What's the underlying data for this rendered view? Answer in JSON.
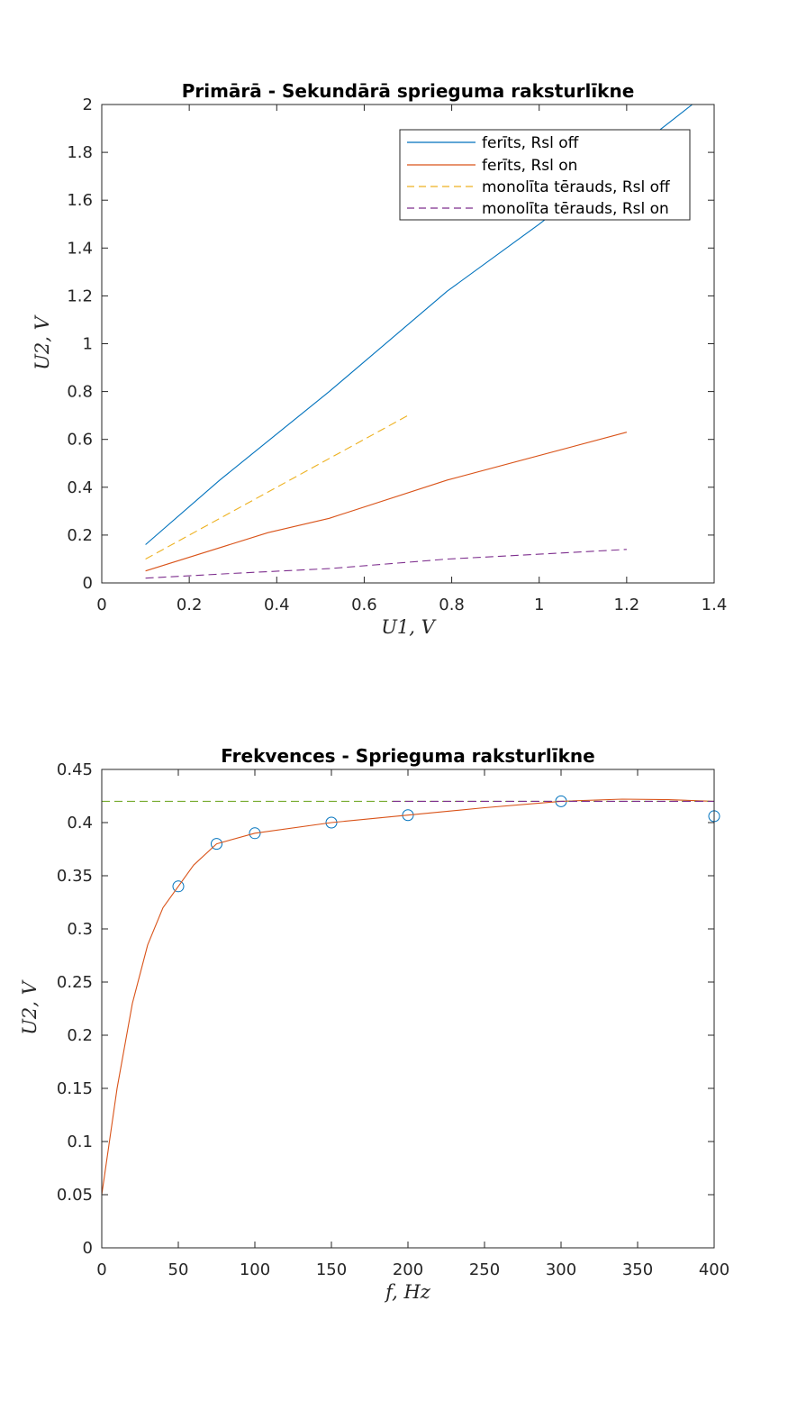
{
  "chart_data": [
    {
      "type": "line",
      "title": "Primārā - Sekundārā sprieguma raksturlīkne",
      "xlabel": "U1, V",
      "ylabel": "U2, V",
      "xlim": [
        0,
        1.4
      ],
      "ylim": [
        0,
        2
      ],
      "xticks": [
        0,
        0.2,
        0.4,
        0.6,
        0.8,
        1,
        1.2,
        1.4
      ],
      "yticks": [
        0,
        0.2,
        0.4,
        0.6,
        0.8,
        1,
        1.2,
        1.4,
        1.6,
        1.8,
        2
      ],
      "grid": false,
      "legend_position": "top-right",
      "series": [
        {
          "name": "ferīts, Rsl off",
          "color": "#0072BD",
          "style": "solid",
          "x": [
            0.1,
            0.27,
            0.52,
            0.79,
            1.0,
            1.35
          ],
          "y": [
            0.16,
            0.43,
            0.8,
            1.22,
            1.5,
            2.0
          ]
        },
        {
          "name": "ferīts, Rsl on",
          "color": "#D95319",
          "style": "solid",
          "x": [
            0.1,
            0.38,
            0.52,
            0.79,
            1.2
          ],
          "y": [
            0.05,
            0.21,
            0.27,
            0.43,
            0.63
          ]
        },
        {
          "name": "monolīta tērauds, Rsl off",
          "color": "#EDB120",
          "style": "dashed",
          "x": [
            0.1,
            0.7
          ],
          "y": [
            0.1,
            0.7
          ]
        },
        {
          "name": "monolīta tērauds, Rsl on",
          "color": "#7E2F8E",
          "style": "dashed",
          "x": [
            0.1,
            0.3,
            0.52,
            0.79,
            1.0,
            1.2
          ],
          "y": [
            0.02,
            0.04,
            0.06,
            0.1,
            0.12,
            0.14
          ]
        }
      ]
    },
    {
      "type": "scatter",
      "title": "Frekvences - Sprieguma raksturlīkne",
      "xlabel": "f, Hz",
      "ylabel": "U2, V",
      "xlim": [
        0,
        400
      ],
      "ylim": [
        0,
        0.45
      ],
      "xticks": [
        0,
        50,
        100,
        150,
        200,
        250,
        300,
        350,
        400
      ],
      "yticks": [
        0,
        0.05,
        0.1,
        0.15,
        0.2,
        0.25,
        0.3,
        0.35,
        0.4,
        0.45
      ],
      "grid": false,
      "series": [
        {
          "kind": "markers",
          "marker": "circle",
          "color": "#0072BD",
          "x": [
            50,
            75,
            100,
            150,
            200,
            300,
            400
          ],
          "y": [
            0.34,
            0.38,
            0.39,
            0.4,
            0.407,
            0.42,
            0.406
          ]
        },
        {
          "kind": "fit-curve",
          "color": "#D95319",
          "style": "solid",
          "x": [
            0,
            10,
            20,
            30,
            40,
            50,
            60,
            75,
            100,
            150,
            200,
            250,
            300,
            340,
            370,
            400
          ],
          "y": [
            0.05,
            0.15,
            0.23,
            0.285,
            0.32,
            0.34,
            0.36,
            0.38,
            0.39,
            0.4,
            0.407,
            0.414,
            0.42,
            0.422,
            0.4215,
            0.42
          ]
        },
        {
          "kind": "asymptote",
          "color": "#77AC30",
          "style": "dashed",
          "x": [
            0,
            400
          ],
          "y": [
            0.42,
            0.42
          ]
        },
        {
          "kind": "overlay",
          "color": "#7E2F8E",
          "style": "dashed",
          "x": [
            190,
            400
          ],
          "y": [
            0.42,
            0.42
          ]
        }
      ]
    }
  ]
}
